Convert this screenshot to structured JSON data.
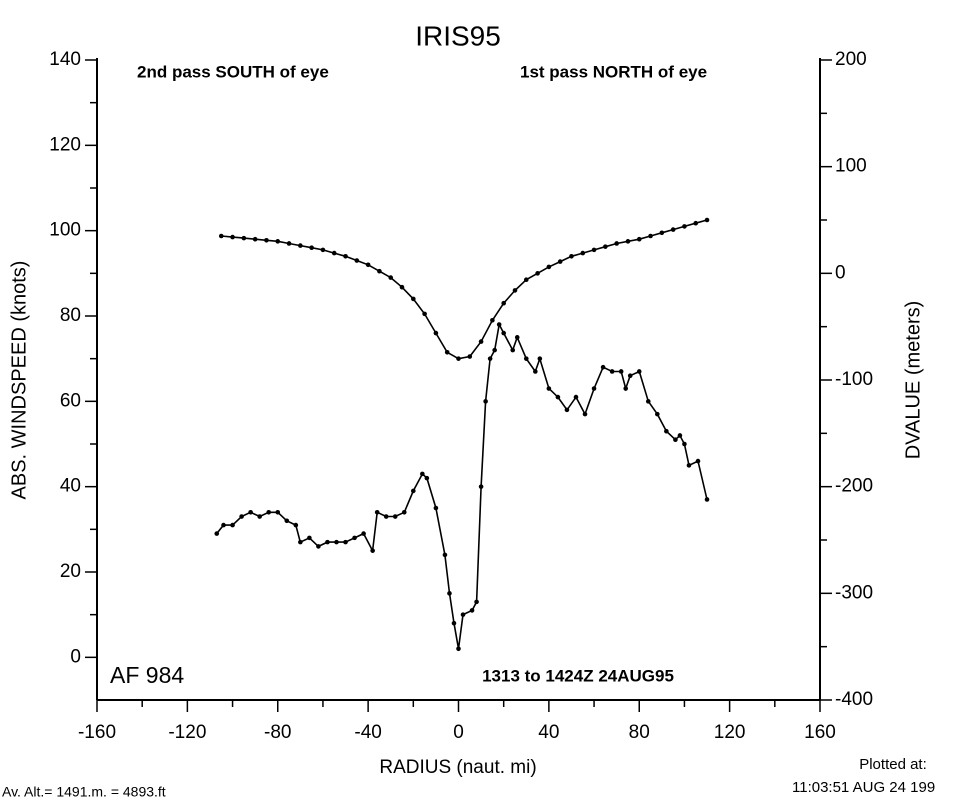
{
  "chart_data": {
    "type": "line",
    "title": "IRIS95",
    "annotations": [
      "2nd pass SOUTH of eye",
      "1st pass NORTH of eye",
      "AF 984",
      "1313 to 1424Z 24AUG95"
    ],
    "footer": [
      "Av. Alt.= 1491.m. =  4893.ft",
      "Plotted at:",
      "11:03:51 AUG 24 199"
    ],
    "xlabel": "RADIUS (naut. mi)",
    "ylabel": "ABS. WINDSPEED (knots)",
    "y2label": "DVALUE (meters)",
    "xlim": [
      -160,
      160
    ],
    "xticks": [
      -160,
      -120,
      -80,
      -40,
      0,
      40,
      80,
      120,
      160
    ],
    "ylim": [
      -10,
      140
    ],
    "yticks": [
      0,
      20,
      40,
      60,
      80,
      100,
      120,
      140
    ],
    "y2lim": [
      -400,
      200
    ],
    "y2ticks": [
      -400,
      -300,
      -200,
      -100,
      0,
      100,
      200
    ],
    "series": [
      {
        "color": "#000000",
        "axis": "y",
        "x": [
          -107,
          -104,
          -100,
          -96,
          -92,
          -88,
          -84,
          -80,
          -76,
          -72,
          -70,
          -66,
          -62,
          -58,
          -54,
          -50,
          -46,
          -42,
          -38,
          -36,
          -32,
          -28,
          -24,
          -20,
          -16,
          -14,
          -10,
          -6,
          -4,
          -2,
          0,
          2,
          6,
          8,
          10,
          12,
          14,
          16,
          18,
          20,
          24,
          26,
          30,
          34,
          36,
          40,
          44,
          48,
          52,
          56,
          60,
          64,
          68,
          72,
          74,
          76,
          80,
          84,
          88,
          92,
          96,
          98,
          100,
          102,
          106,
          110
        ],
        "values": [
          29,
          31,
          31,
          33,
          34,
          33,
          34,
          34,
          32,
          31,
          27,
          28,
          26,
          27,
          27,
          27,
          28,
          29,
          25,
          34,
          33,
          33,
          34,
          39,
          43,
          42,
          35,
          24,
          15,
          8,
          2,
          10,
          11,
          13,
          40,
          60,
          70,
          72,
          78,
          76,
          72,
          75,
          70,
          67,
          70,
          63,
          61,
          58,
          61,
          57,
          63,
          68,
          67,
          67,
          63,
          66,
          67,
          60,
          57,
          53,
          51,
          52,
          50,
          45,
          46,
          37
        ]
      },
      {
        "color": "#000000",
        "axis": "y2",
        "x": [
          -105,
          -100,
          -95,
          -90,
          -85,
          -80,
          -75,
          -70,
          -65,
          -60,
          -55,
          -50,
          -45,
          -40,
          -35,
          -30,
          -25,
          -20,
          -15,
          -10,
          -5,
          0,
          5,
          10,
          15,
          20,
          25,
          30,
          35,
          40,
          45,
          50,
          55,
          60,
          65,
          70,
          75,
          80,
          85,
          90,
          95,
          100,
          105,
          110
        ],
        "values": [
          35,
          34,
          33,
          32,
          31,
          30,
          28,
          26,
          24,
          22,
          19,
          16,
          12,
          8,
          2,
          -4,
          -13,
          -24,
          -38,
          -56,
          -74,
          -80,
          -78,
          -64,
          -44,
          -28,
          -16,
          -6,
          0,
          6,
          11,
          16,
          19,
          22,
          25,
          28,
          30,
          32,
          35,
          38,
          41,
          44,
          47,
          50
        ]
      }
    ]
  }
}
